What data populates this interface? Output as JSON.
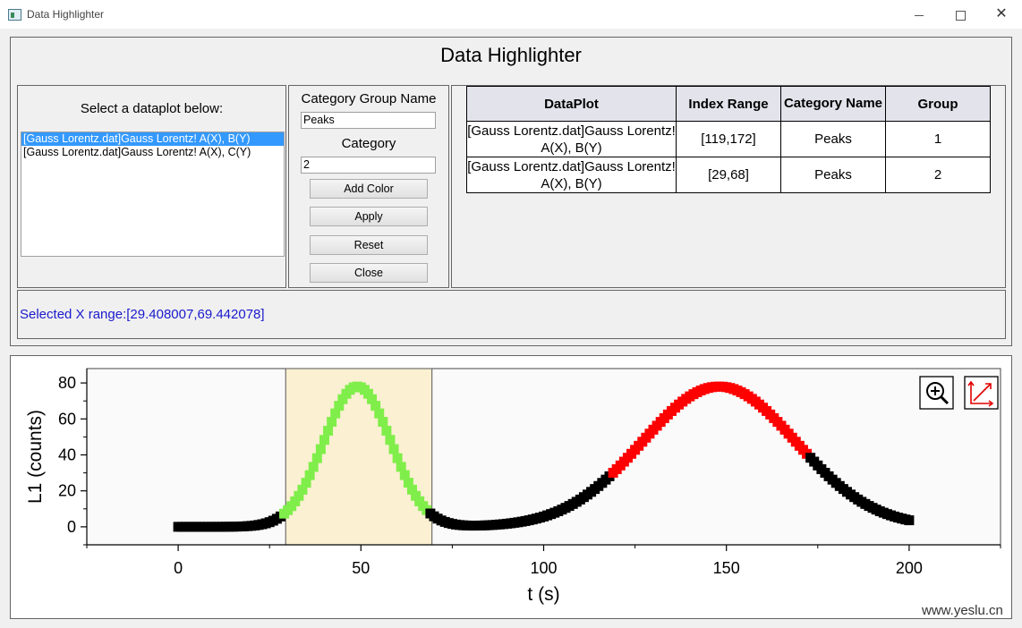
{
  "window": {
    "title": "Data Highlighter"
  },
  "dialog": {
    "title": "Data Highlighter",
    "select_label": "Select a dataplot below:",
    "dataplots": [
      "[Gauss Lorentz.dat]Gauss Lorentz! A(X), B(Y)",
      "[Gauss Lorentz.dat]Gauss Lorentz! A(X), C(Y)"
    ],
    "selected_index": 0,
    "category_group_name_label": "Category Group Name",
    "category_group_name_value": "Peaks",
    "category_label": "Category",
    "category_value": "2",
    "buttons": {
      "add_color": "Add Color",
      "apply": "Apply",
      "reset": "Reset",
      "close": "Close"
    },
    "table": {
      "headers": [
        "DataPlot",
        "Index Range",
        "Category Name",
        "Group"
      ],
      "rows": [
        [
          "[Gauss Lorentz.dat]Gauss Lorentz! A(X), B(Y)",
          "[119,172]",
          "Peaks",
          "1"
        ],
        [
          "[Gauss Lorentz.dat]Gauss Lorentz! A(X), B(Y)",
          "[29,68]",
          "Peaks",
          "2"
        ]
      ]
    },
    "status": "Selected X range:[29.408007,69.442078]"
  },
  "chart_data": {
    "type": "scatter",
    "xlabel": "t (s)",
    "ylabel": "L1 (counts)",
    "xlim": [
      -25,
      225
    ],
    "ylim": [
      -10,
      88
    ],
    "xticks": [
      0,
      50,
      100,
      150,
      200
    ],
    "yticks": [
      0,
      20,
      40,
      60,
      80
    ],
    "highlight_x_range": [
      29.408007,
      69.442078
    ],
    "highlight_color": "#fbf0d2",
    "base_color": "#000000",
    "x_start": 0,
    "x_end": 200,
    "peaks": [
      {
        "center": 49,
        "height": 78,
        "width": 9.2
      },
      {
        "center": 148,
        "height": 78,
        "width": 21
      }
    ],
    "groups": [
      {
        "index_range": [
          29,
          68
        ],
        "color": "#80ee4a"
      },
      {
        "index_range": [
          119,
          172
        ],
        "color": "#ff0000"
      }
    ]
  },
  "tools": {
    "zoom": "zoom-in-icon",
    "axes": "rescale-axes-icon"
  },
  "watermark": "www.yeslu.cn"
}
